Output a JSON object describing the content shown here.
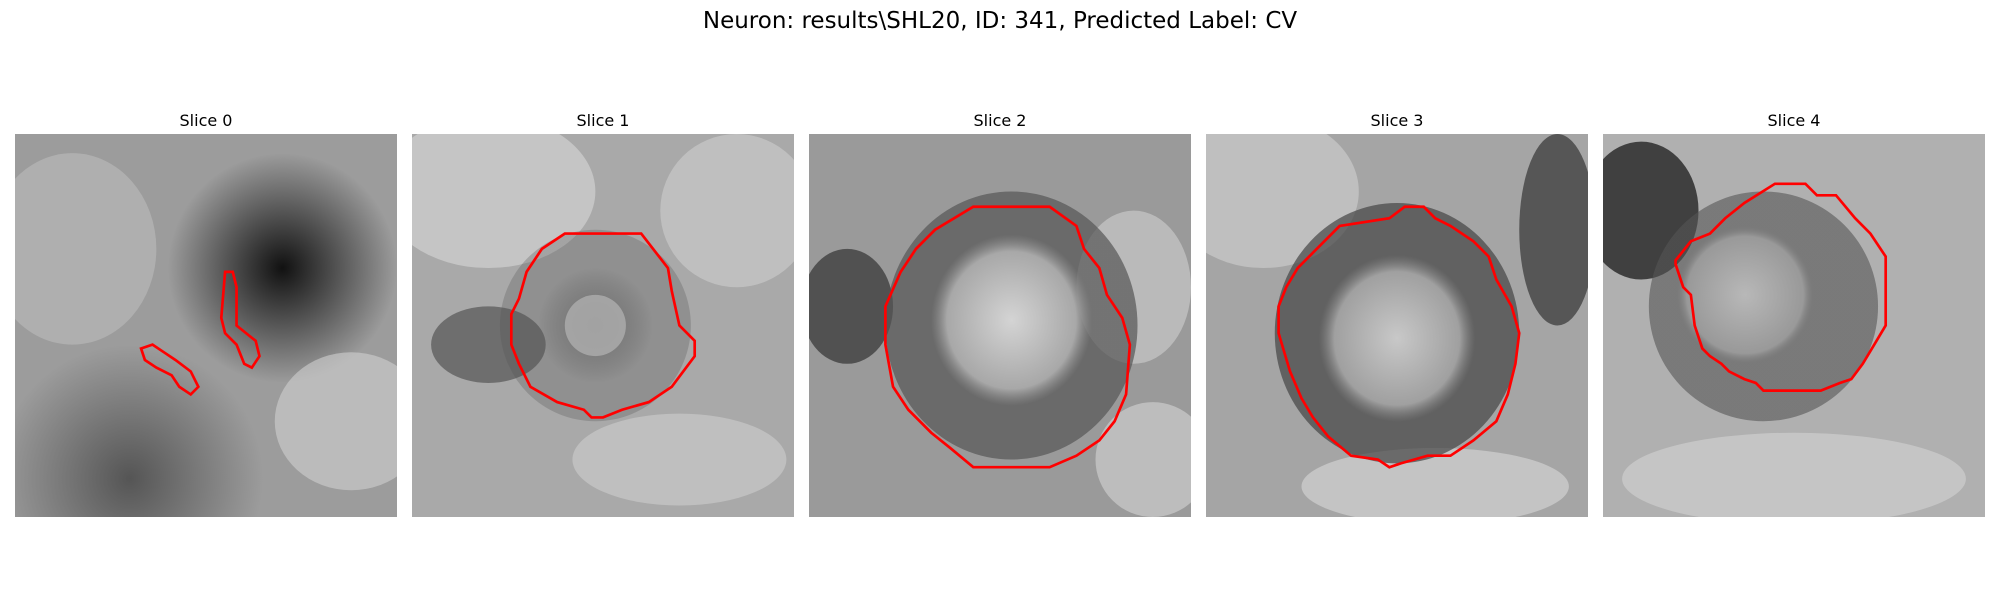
{
  "figure": {
    "title": "Neuron: results\\SHL20, ID: 341, Predicted Label: CV"
  },
  "panels": [
    {
      "title": "Slice 0"
    },
    {
      "title": "Slice 1"
    },
    {
      "title": "Slice 2"
    },
    {
      "title": "Slice 3"
    },
    {
      "title": "Slice 4"
    }
  ],
  "colors": {
    "contour": "#ff0000",
    "background": "#ffffff"
  },
  "icons": {
    "image": "grayscale-microscopy-slice"
  }
}
